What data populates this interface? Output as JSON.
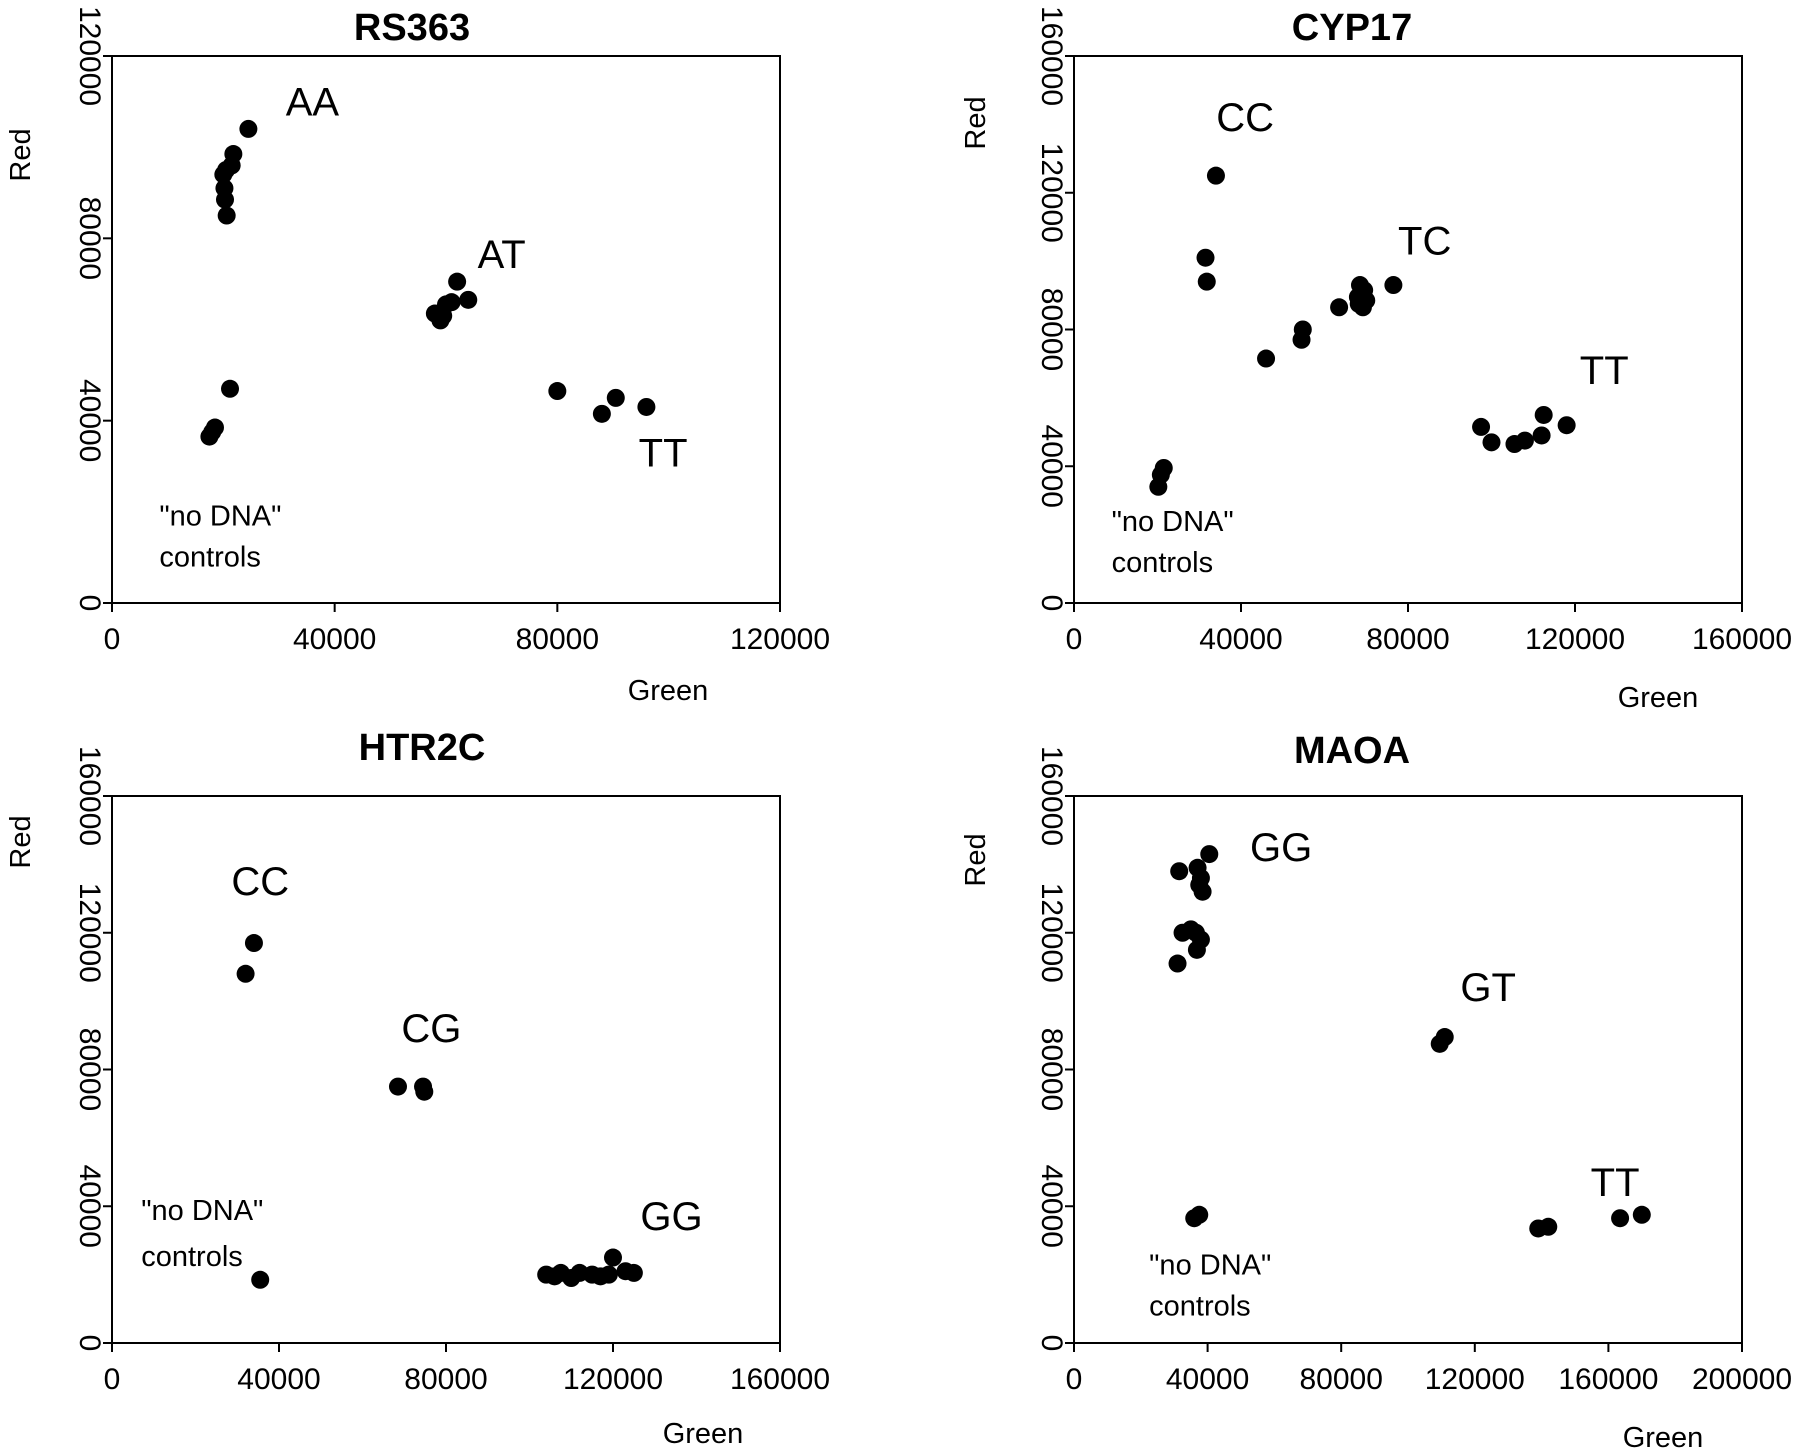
{
  "chart_data": [
    {
      "type": "scatter",
      "title": "RS363",
      "xlabel": "Green",
      "ylabel": "Red",
      "xlim": [
        0,
        120000
      ],
      "ylim": [
        0,
        120000
      ],
      "xticks": [
        0,
        40000,
        80000,
        120000
      ],
      "yticks": [
        0,
        40000,
        80000,
        120000
      ],
      "grid": false,
      "points": [
        [
          24500,
          104000
        ],
        [
          21800,
          98500
        ],
        [
          21500,
          96000
        ],
        [
          20500,
          95000
        ],
        [
          20000,
          94000
        ],
        [
          20200,
          91000
        ],
        [
          20300,
          88500
        ],
        [
          20600,
          85000
        ],
        [
          62000,
          70500
        ],
        [
          64000,
          66500
        ],
        [
          61000,
          66000
        ],
        [
          60000,
          65500
        ],
        [
          58000,
          63500
        ],
        [
          59500,
          63000
        ],
        [
          59000,
          62000
        ],
        [
          80000,
          46500
        ],
        [
          88000,
          41500
        ],
        [
          90500,
          45000
        ],
        [
          96000,
          43000
        ],
        [
          21200,
          47000
        ],
        [
          18500,
          38500
        ],
        [
          18000,
          37500
        ],
        [
          17500,
          36500
        ]
      ],
      "annotations": [
        {
          "text": "AA",
          "x": 36000,
          "y": 107000,
          "anchor": "middle"
        },
        {
          "text": "AT",
          "x": 70000,
          "y": 73500,
          "anchor": "middle"
        },
        {
          "text": "TT",
          "x": 99000,
          "y": 30000,
          "anchor": "middle"
        },
        {
          "text": "\"no DNA\"",
          "x": 8500,
          "y": 17000,
          "anchor": "start"
        },
        {
          "text": "controls",
          "x": 8500,
          "y": 8000,
          "anchor": "start"
        }
      ]
    },
    {
      "type": "scatter",
      "title": "CYP17",
      "xlabel": "Green",
      "ylabel": "Red",
      "xlim": [
        0,
        160000
      ],
      "ylim": [
        0,
        160000
      ],
      "xticks": [
        0,
        40000,
        80000,
        120000,
        160000
      ],
      "yticks": [
        0,
        40000,
        80000,
        120000,
        160000
      ],
      "grid": false,
      "points": [
        [
          34000,
          125000
        ],
        [
          31500,
          101000
        ],
        [
          31800,
          94000
        ],
        [
          46000,
          71500
        ],
        [
          54500,
          77000
        ],
        [
          54800,
          80000
        ],
        [
          63500,
          86500
        ],
        [
          68500,
          93000
        ],
        [
          69500,
          91500
        ],
        [
          68000,
          89500
        ],
        [
          70000,
          88500
        ],
        [
          68200,
          87500
        ],
        [
          69200,
          86500
        ],
        [
          76500,
          93000
        ],
        [
          97500,
          51500
        ],
        [
          100000,
          47000
        ],
        [
          105500,
          46500
        ],
        [
          108000,
          47500
        ],
        [
          112000,
          49000
        ],
        [
          112500,
          55000
        ],
        [
          118000,
          52000
        ],
        [
          21500,
          39500
        ],
        [
          20800,
          37500
        ],
        [
          20200,
          34000
        ]
      ],
      "annotations": [
        {
          "text": "CC",
          "x": 41000,
          "y": 138000,
          "anchor": "middle"
        },
        {
          "text": "TC",
          "x": 84000,
          "y": 102000,
          "anchor": "middle"
        },
        {
          "text": "TT",
          "x": 127000,
          "y": 64000,
          "anchor": "middle"
        },
        {
          "text": "\"no DNA\"",
          "x": 9000,
          "y": 21000,
          "anchor": "start"
        },
        {
          "text": "controls",
          "x": 9000,
          "y": 9000,
          "anchor": "start"
        }
      ]
    },
    {
      "type": "scatter",
      "title": "HTR2C",
      "xlabel": "Green",
      "ylabel": "Red",
      "xlim": [
        0,
        160000
      ],
      "ylim": [
        0,
        160000
      ],
      "xticks": [
        0,
        40000,
        80000,
        120000,
        160000
      ],
      "yticks": [
        0,
        40000,
        80000,
        120000,
        160000
      ],
      "grid": false,
      "points": [
        [
          34000,
          117000
        ],
        [
          32000,
          108000
        ],
        [
          68500,
          75000
        ],
        [
          74500,
          75000
        ],
        [
          74800,
          73500
        ],
        [
          104000,
          20000
        ],
        [
          106000,
          19500
        ],
        [
          107500,
          20500
        ],
        [
          110000,
          19000
        ],
        [
          112000,
          20500
        ],
        [
          115000,
          20000
        ],
        [
          117000,
          19500
        ],
        [
          119000,
          20000
        ],
        [
          120000,
          25000
        ],
        [
          123000,
          21000
        ],
        [
          125000,
          20500
        ],
        [
          35500,
          18500
        ]
      ],
      "annotations": [
        {
          "text": "CC",
          "x": 35500,
          "y": 131000,
          "anchor": "middle"
        },
        {
          "text": "CG",
          "x": 76500,
          "y": 88000,
          "anchor": "middle"
        },
        {
          "text": "GG",
          "x": 134000,
          "y": 33000,
          "anchor": "middle"
        },
        {
          "text": "\"no DNA\"",
          "x": 7000,
          "y": 36000,
          "anchor": "start"
        },
        {
          "text": "controls",
          "x": 7000,
          "y": 22500,
          "anchor": "start"
        }
      ]
    },
    {
      "type": "scatter",
      "title": "MAOA",
      "xlabel": "Green",
      "ylabel": "Red",
      "xlim": [
        0,
        200000
      ],
      "ylim": [
        0,
        160000
      ],
      "xticks": [
        0,
        40000,
        80000,
        120000,
        160000,
        200000
      ],
      "yticks": [
        0,
        40000,
        80000,
        120000,
        160000
      ],
      "grid": false,
      "points": [
        [
          40500,
          143000
        ],
        [
          31500,
          138000
        ],
        [
          37000,
          139000
        ],
        [
          38000,
          136000
        ],
        [
          37500,
          134000
        ],
        [
          38500,
          132000
        ],
        [
          32500,
          120000
        ],
        [
          35000,
          121000
        ],
        [
          36500,
          120000
        ],
        [
          38000,
          118000
        ],
        [
          36800,
          115000
        ],
        [
          31000,
          111000
        ],
        [
          109500,
          87500
        ],
        [
          111000,
          89500
        ],
        [
          139000,
          33500
        ],
        [
          142000,
          34000
        ],
        [
          163500,
          36500
        ],
        [
          170000,
          37500
        ],
        [
          36000,
          36500
        ],
        [
          37500,
          37500
        ]
      ],
      "annotations": [
        {
          "text": "GG",
          "x": 62000,
          "y": 141000,
          "anchor": "middle"
        },
        {
          "text": "GT",
          "x": 124000,
          "y": 100000,
          "anchor": "middle"
        },
        {
          "text": "TT",
          "x": 162000,
          "y": 43000,
          "anchor": "middle"
        },
        {
          "text": "\"no DNA\"",
          "x": 22500,
          "y": 20000,
          "anchor": "start"
        },
        {
          "text": "controls",
          "x": 22500,
          "y": 8000,
          "anchor": "start"
        }
      ]
    }
  ]
}
